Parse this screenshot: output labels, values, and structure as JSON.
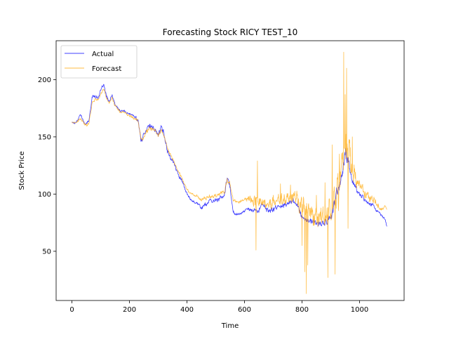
{
  "chart_data": {
    "type": "line",
    "title": "Forecasting Stock RICY TEST_10",
    "xlabel": "Time",
    "ylabel": "Stock Price",
    "xlim": [
      -55,
      1155
    ],
    "ylim": [
      7,
      234
    ],
    "xticks": [
      0,
      200,
      400,
      600,
      800,
      1000
    ],
    "yticks": [
      50,
      100,
      150,
      200
    ],
    "grid": false,
    "legend_position": "upper-left",
    "series": [
      {
        "name": "Actual",
        "color": "#0000ff",
        "anchors": [
          [
            0,
            163
          ],
          [
            10,
            162
          ],
          [
            20,
            165
          ],
          [
            30,
            170
          ],
          [
            40,
            163
          ],
          [
            50,
            161
          ],
          [
            60,
            165
          ],
          [
            70,
            185
          ],
          [
            80,
            186
          ],
          [
            90,
            184
          ],
          [
            100,
            190
          ],
          [
            110,
            196
          ],
          [
            120,
            185
          ],
          [
            130,
            181
          ],
          [
            140,
            186
          ],
          [
            150,
            178
          ],
          [
            160,
            175
          ],
          [
            170,
            172
          ],
          [
            180,
            173
          ],
          [
            190,
            171
          ],
          [
            200,
            170
          ],
          [
            210,
            169
          ],
          [
            220,
            167
          ],
          [
            230,
            165
          ],
          [
            240,
            146
          ],
          [
            250,
            152
          ],
          [
            260,
            158
          ],
          [
            270,
            160
          ],
          [
            280,
            157
          ],
          [
            290,
            156
          ],
          [
            300,
            152
          ],
          [
            310,
            158
          ],
          [
            320,
            153
          ],
          [
            330,
            140
          ],
          [
            340,
            133
          ],
          [
            350,
            130
          ],
          [
            360,
            123
          ],
          [
            370,
            117
          ],
          [
            380,
            113
          ],
          [
            390,
            107
          ],
          [
            400,
            100
          ],
          [
            410,
            96
          ],
          [
            420,
            94
          ],
          [
            430,
            93
          ],
          [
            440,
            91
          ],
          [
            450,
            88
          ],
          [
            460,
            90
          ],
          [
            470,
            92
          ],
          [
            480,
            94
          ],
          [
            490,
            93
          ],
          [
            500,
            95
          ],
          [
            510,
            96
          ],
          [
            520,
            97
          ],
          [
            530,
            98
          ],
          [
            540,
            115
          ],
          [
            550,
            105
          ],
          [
            560,
            85
          ],
          [
            570,
            83
          ],
          [
            580,
            82
          ],
          [
            590,
            84
          ],
          [
            600,
            85
          ],
          [
            610,
            87
          ],
          [
            620,
            86
          ],
          [
            630,
            85
          ],
          [
            640,
            87
          ],
          [
            650,
            84
          ],
          [
            660,
            92
          ],
          [
            670,
            89
          ],
          [
            680,
            86
          ],
          [
            690,
            85
          ],
          [
            700,
            87
          ],
          [
            710,
            88
          ],
          [
            720,
            89
          ],
          [
            730,
            91
          ],
          [
            740,
            90
          ],
          [
            750,
            92
          ],
          [
            760,
            93
          ],
          [
            770,
            95
          ],
          [
            780,
            90
          ],
          [
            790,
            88
          ],
          [
            800,
            80
          ],
          [
            810,
            78
          ],
          [
            820,
            77
          ],
          [
            830,
            76
          ],
          [
            840,
            75
          ],
          [
            850,
            75
          ],
          [
            860,
            74
          ],
          [
            870,
            74
          ],
          [
            880,
            75
          ],
          [
            890,
            77
          ],
          [
            900,
            80
          ],
          [
            910,
            88
          ],
          [
            920,
            100
          ],
          [
            930,
            105
          ],
          [
            940,
            120
          ],
          [
            950,
            135
          ],
          [
            960,
            130
          ],
          [
            970,
            118
          ],
          [
            980,
            108
          ],
          [
            990,
            103
          ],
          [
            1000,
            100
          ],
          [
            1010,
            98
          ],
          [
            1020,
            95
          ],
          [
            1030,
            93
          ],
          [
            1040,
            91
          ],
          [
            1050,
            90
          ],
          [
            1060,
            85
          ],
          [
            1070,
            83
          ],
          [
            1080,
            80
          ],
          [
            1090,
            78
          ],
          [
            1095,
            71
          ]
        ],
        "volatility": [
          [
            0,
            1.2
          ],
          [
            60,
            1.8
          ],
          [
            120,
            2.0
          ],
          [
            200,
            1.2
          ],
          [
            240,
            3.0
          ],
          [
            330,
            3.5
          ],
          [
            400,
            1.8
          ],
          [
            540,
            3.0
          ],
          [
            600,
            1.5
          ],
          [
            700,
            3.5
          ],
          [
            800,
            3.0
          ],
          [
            900,
            4.5
          ],
          [
            940,
            9.0
          ],
          [
            1000,
            3.0
          ],
          [
            1095,
            1.5
          ]
        ]
      },
      {
        "name": "Forecast",
        "color": "#ffa500",
        "anchors": [
          [
            0,
            163
          ],
          [
            10,
            162
          ],
          [
            20,
            163
          ],
          [
            30,
            166
          ],
          [
            40,
            162
          ],
          [
            50,
            160
          ],
          [
            60,
            163
          ],
          [
            70,
            180
          ],
          [
            80,
            183
          ],
          [
            90,
            182
          ],
          [
            100,
            187
          ],
          [
            110,
            192
          ],
          [
            120,
            184
          ],
          [
            130,
            180
          ],
          [
            140,
            184
          ],
          [
            150,
            177
          ],
          [
            160,
            174
          ],
          [
            170,
            171
          ],
          [
            180,
            172
          ],
          [
            190,
            170
          ],
          [
            200,
            169
          ],
          [
            210,
            168
          ],
          [
            220,
            166
          ],
          [
            230,
            164
          ],
          [
            240,
            148
          ],
          [
            250,
            150
          ],
          [
            260,
            155
          ],
          [
            270,
            158
          ],
          [
            280,
            156
          ],
          [
            290,
            155
          ],
          [
            300,
            152
          ],
          [
            310,
            156
          ],
          [
            320,
            151
          ],
          [
            330,
            141
          ],
          [
            340,
            135
          ],
          [
            350,
            131
          ],
          [
            360,
            125
          ],
          [
            370,
            120
          ],
          [
            380,
            115
          ],
          [
            390,
            110
          ],
          [
            400,
            104
          ],
          [
            410,
            101
          ],
          [
            420,
            100
          ],
          [
            430,
            99
          ],
          [
            440,
            97
          ],
          [
            450,
            95
          ],
          [
            460,
            96
          ],
          [
            470,
            97
          ],
          [
            480,
            98
          ],
          [
            490,
            98
          ],
          [
            500,
            99
          ],
          [
            510,
            100
          ],
          [
            520,
            101
          ],
          [
            530,
            102
          ],
          [
            540,
            112
          ],
          [
            550,
            108
          ],
          [
            560,
            95
          ],
          [
            570,
            93
          ],
          [
            580,
            93
          ],
          [
            590,
            94
          ],
          [
            600,
            95
          ],
          [
            610,
            96
          ],
          [
            620,
            96
          ],
          [
            630,
            95
          ],
          [
            640,
            97
          ],
          [
            650,
            94
          ],
          [
            660,
            93
          ],
          [
            670,
            91
          ],
          [
            680,
            90
          ],
          [
            690,
            91
          ],
          [
            700,
            93
          ],
          [
            710,
            94
          ],
          [
            720,
            95
          ],
          [
            730,
            96
          ],
          [
            740,
            95
          ],
          [
            750,
            96
          ],
          [
            760,
            97
          ],
          [
            770,
            98
          ],
          [
            780,
            95
          ],
          [
            790,
            92
          ],
          [
            800,
            88
          ],
          [
            810,
            86
          ],
          [
            820,
            84
          ],
          [
            830,
            83
          ],
          [
            840,
            82
          ],
          [
            850,
            81
          ],
          [
            860,
            80
          ],
          [
            870,
            80
          ],
          [
            880,
            81
          ],
          [
            890,
            83
          ],
          [
            900,
            86
          ],
          [
            910,
            92
          ],
          [
            920,
            102
          ],
          [
            930,
            110
          ],
          [
            940,
            125
          ],
          [
            950,
            155
          ],
          [
            960,
            140
          ],
          [
            970,
            125
          ],
          [
            980,
            115
          ],
          [
            990,
            110
          ],
          [
            1000,
            107
          ],
          [
            1010,
            104
          ],
          [
            1020,
            100
          ],
          [
            1030,
            97
          ],
          [
            1040,
            95
          ],
          [
            1050,
            93
          ],
          [
            1060,
            90
          ],
          [
            1070,
            88
          ],
          [
            1080,
            87
          ],
          [
            1090,
            88
          ],
          [
            1095,
            87
          ]
        ],
        "volatility": [
          [
            0,
            1.5
          ],
          [
            60,
            2.0
          ],
          [
            200,
            1.5
          ],
          [
            240,
            3.0
          ],
          [
            400,
            1.8
          ],
          [
            540,
            3.0
          ],
          [
            600,
            2.0
          ],
          [
            640,
            8.0
          ],
          [
            700,
            6.0
          ],
          [
            780,
            10.0
          ],
          [
            820,
            18.0
          ],
          [
            880,
            12.0
          ],
          [
            930,
            30.0
          ],
          [
            960,
            28.0
          ],
          [
            990,
            10.0
          ],
          [
            1095,
            2.0
          ]
        ],
        "spikes": [
          [
            640,
            51
          ],
          [
            645,
            129
          ],
          [
            700,
            99
          ],
          [
            725,
            109
          ],
          [
            760,
            108
          ],
          [
            800,
            55
          ],
          [
            810,
            32
          ],
          [
            815,
            13
          ],
          [
            820,
            38
          ],
          [
            850,
            99
          ],
          [
            880,
            110
          ],
          [
            890,
            27
          ],
          [
            905,
            143
          ],
          [
            915,
            30
          ],
          [
            930,
            135
          ],
          [
            945,
            224
          ],
          [
            950,
            187
          ],
          [
            955,
            210
          ],
          [
            960,
            70
          ],
          [
            975,
            150
          ]
        ]
      }
    ]
  }
}
